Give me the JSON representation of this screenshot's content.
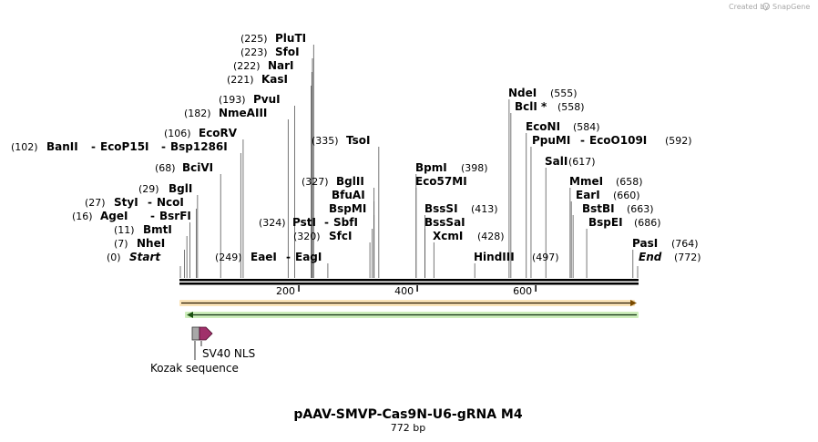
{
  "brand": {
    "created_by": "Created by",
    "name": "SnapGene"
  },
  "map": {
    "title": "pAAV-SMVP-Cas9N-U6-gRNA M4",
    "length_label": "772 bp",
    "total_bp": 772,
    "axis_ticks": [
      {
        "bp": 200,
        "label": "200"
      },
      {
        "bp": 400,
        "label": "400"
      },
      {
        "bp": 600,
        "label": "600"
      }
    ]
  },
  "sites": [
    {
      "id": "start",
      "pos": 0,
      "pos_label": "(0)",
      "names": [
        "Start"
      ],
      "italic": true
    },
    {
      "id": "nhei",
      "pos": 7,
      "pos_label": "(7)",
      "names": [
        "NheI"
      ]
    },
    {
      "id": "bmti",
      "pos": 11,
      "pos_label": "(11)",
      "names": [
        "BmtI"
      ]
    },
    {
      "id": "agei",
      "pos": 16,
      "pos_label": "(16)",
      "names": [
        "AgeI",
        "BsrFI"
      ]
    },
    {
      "id": "styi",
      "pos": 27,
      "pos_label": "(27)",
      "names": [
        "StyI",
        "NcoI"
      ]
    },
    {
      "id": "bgli",
      "pos": 29,
      "pos_label": "(29)",
      "names": [
        "BglI"
      ]
    },
    {
      "id": "bcivi",
      "pos": 68,
      "pos_label": "(68)",
      "names": [
        "BciVI"
      ]
    },
    {
      "id": "banii",
      "pos": 102,
      "pos_label": "(102)",
      "names": [
        "BanII",
        "EcoP15I",
        "Bsp1286I"
      ]
    },
    {
      "id": "ecorv",
      "pos": 106,
      "pos_label": "(106)",
      "names": [
        "EcoRV"
      ]
    },
    {
      "id": "nmeaiii",
      "pos": 182,
      "pos_label": "(182)",
      "names": [
        "NmeAIII"
      ]
    },
    {
      "id": "pvui",
      "pos": 193,
      "pos_label": "(193)",
      "names": [
        "PvuI"
      ]
    },
    {
      "id": "kasi",
      "pos": 221,
      "pos_label": "(221)",
      "names": [
        "KasI"
      ]
    },
    {
      "id": "nari",
      "pos": 222,
      "pos_label": "(222)",
      "names": [
        "NarI"
      ]
    },
    {
      "id": "sfoi",
      "pos": 223,
      "pos_label": "(223)",
      "names": [
        "SfoI"
      ]
    },
    {
      "id": "pluti",
      "pos": 225,
      "pos_label": "(225)",
      "names": [
        "PluTI"
      ]
    },
    {
      "id": "eaei",
      "pos": 249,
      "pos_label": "(249)",
      "names": [
        "EaeI",
        "EagI"
      ]
    },
    {
      "id": "sfci",
      "pos": 320,
      "pos_label": "(320)",
      "names": [
        "SfcI"
      ]
    },
    {
      "id": "psti",
      "pos": 324,
      "pos_label": "(324)",
      "names": [
        "PstI",
        "SbfI"
      ]
    },
    {
      "id": "bspmi",
      "pos": 327,
      "pos_label": "",
      "names": [
        "BspMI"
      ]
    },
    {
      "id": "bfuai",
      "pos": 327,
      "pos_label": "",
      "names": [
        "BfuAI"
      ]
    },
    {
      "id": "bglii",
      "pos": 327,
      "pos_label": "(327)",
      "names": [
        "BglII"
      ]
    },
    {
      "id": "tsoi",
      "pos": 335,
      "pos_label": "(335)",
      "names": [
        "TsoI"
      ]
    },
    {
      "id": "eco57mi",
      "pos": 398,
      "pos_label": "",
      "names": [
        "Eco57MI"
      ]
    },
    {
      "id": "bpmi",
      "pos": 398,
      "pos_label": "(398)",
      "names": [
        "BpmI"
      ]
    },
    {
      "id": "xcmi",
      "pos": 428,
      "pos_label": "(428)",
      "names": [
        "XcmI"
      ]
    },
    {
      "id": "bsssai",
      "pos": 413,
      "pos_label": "",
      "names": [
        "BssSaI"
      ]
    },
    {
      "id": "bsssi",
      "pos": 413,
      "pos_label": "(413)",
      "names": [
        "BssSI"
      ]
    },
    {
      "id": "hindiii",
      "pos": 497,
      "pos_label": "(497)",
      "names": [
        "HindIII"
      ]
    },
    {
      "id": "saii",
      "pos": 617,
      "pos_label": "(617)",
      "names": [
        "SalI"
      ]
    },
    {
      "id": "ppumi",
      "pos": 592,
      "pos_label": "(592)",
      "names": [
        "PpuMI",
        "EcoO109I"
      ]
    },
    {
      "id": "econi",
      "pos": 584,
      "pos_label": "(584)",
      "names": [
        "EcoNI"
      ]
    },
    {
      "id": "bcli",
      "pos": 558,
      "pos_label": "(558)",
      "names": [
        "BclI *"
      ]
    },
    {
      "id": "ndei",
      "pos": 555,
      "pos_label": "(555)",
      "names": [
        "NdeI"
      ]
    },
    {
      "id": "bspei",
      "pos": 686,
      "pos_label": "(686)",
      "names": [
        "BspEI"
      ]
    },
    {
      "id": "bstbi",
      "pos": 663,
      "pos_label": "(663)",
      "names": [
        "BstBI"
      ]
    },
    {
      "id": "eari",
      "pos": 660,
      "pos_label": "(660)",
      "names": [
        "EarI"
      ]
    },
    {
      "id": "mmei",
      "pos": 658,
      "pos_label": "(658)",
      "names": [
        "MmeI"
      ]
    },
    {
      "id": "end",
      "pos": 772,
      "pos_label": "(772)",
      "names": [
        "End"
      ],
      "italic": true
    },
    {
      "id": "pasi",
      "pos": 764,
      "pos_label": "(764)",
      "names": [
        "PasI"
      ]
    }
  ],
  "features": [
    {
      "id": "orange-bar",
      "start": 0,
      "end": 772,
      "direction": "forward",
      "color": "#f0b040"
    },
    {
      "id": "green-bar",
      "start": 0,
      "end": 772,
      "direction": "reverse",
      "color": "#40a020"
    },
    {
      "id": "kozak",
      "label": "Kozak sequence",
      "start": 16,
      "end": 24,
      "color": "#a8a8a8"
    },
    {
      "id": "sv40-nls",
      "label": "SV40 NLS",
      "start": 24,
      "end": 45,
      "color": "#a0306a"
    }
  ]
}
